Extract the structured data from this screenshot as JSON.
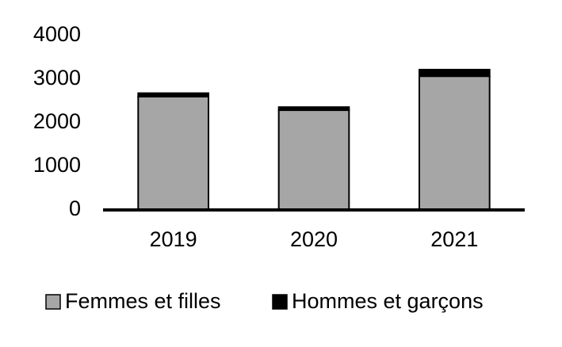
{
  "chart_data": {
    "type": "stacked_bar",
    "categories": [
      "2019",
      "2020",
      "2021"
    ],
    "series": [
      {
        "name": "Femmes et filles",
        "color": "#a6a6a6",
        "values": [
          2600,
          2290,
          3070
        ]
      },
      {
        "name": "Hommes et garçons",
        "color": "#000000",
        "values": [
          80,
          70,
          150
        ]
      }
    ],
    "ylim": [
      0,
      4000
    ],
    "yticks": [
      0,
      1000,
      2000,
      3000,
      4000
    ],
    "grid": false
  }
}
